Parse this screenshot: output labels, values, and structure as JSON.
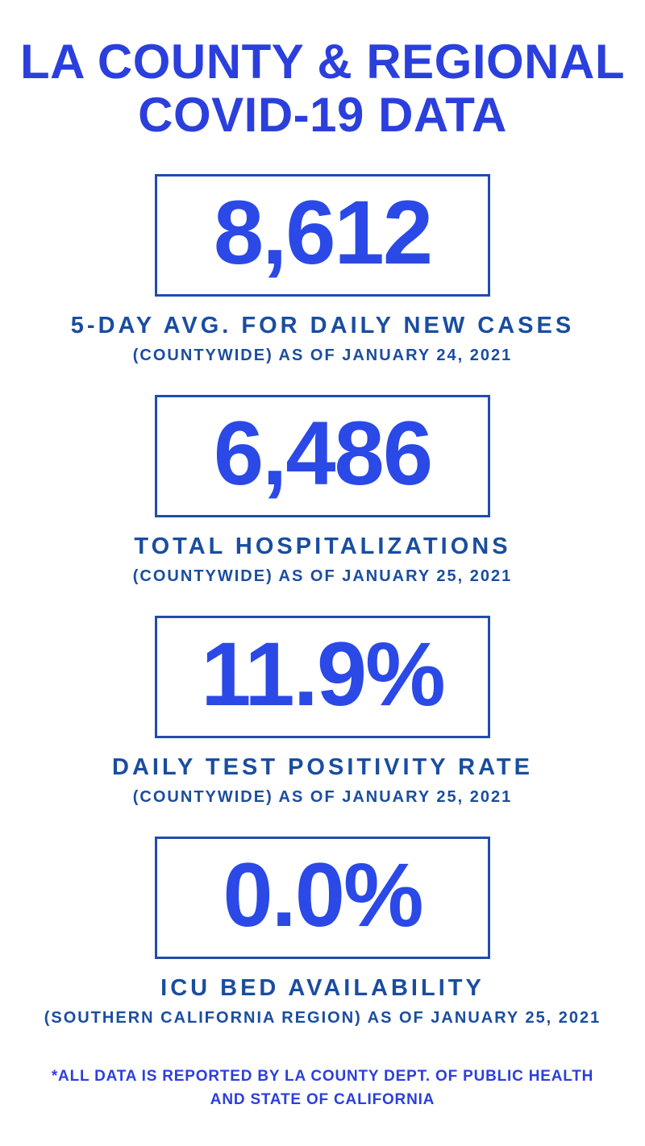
{
  "page": {
    "title_line1": "LA COUNTY & REGIONAL",
    "title_line2": "COVID-19 DATA"
  },
  "stats": [
    {
      "value": "8,612",
      "label": "5-DAY AVG. FOR DAILY NEW CASES",
      "sublabel": "(COUNTYWIDE) AS OF JANUARY 24, 2021"
    },
    {
      "value": "6,486",
      "label": "TOTAL HOSPITALIZATIONS",
      "sublabel": "(COUNTYWIDE) AS OF JANUARY 25, 2021"
    },
    {
      "value": "11.9%",
      "label": "DAILY TEST POSITIVITY RATE",
      "sublabel": "(COUNTYWIDE) AS OF JANUARY 25, 2021"
    },
    {
      "value": "0.0%",
      "label": "ICU BED AVAILABILITY",
      "sublabel": "(SOUTHERN CALIFORNIA REGION) AS OF JANUARY 25, 2021"
    }
  ],
  "footer": {
    "line1": "*ALL DATA IS REPORTED BY LA COUNTY DEPT. OF PUBLIC HEALTH",
    "line2": "AND STATE OF CALIFORNIA"
  },
  "colors": {
    "bright-blue": "#2b3fdd",
    "number-blue": "#2b49e6",
    "label-navy": "#1a4da0",
    "border-blue": "#1f4cb0",
    "bg": "#ffffff"
  }
}
